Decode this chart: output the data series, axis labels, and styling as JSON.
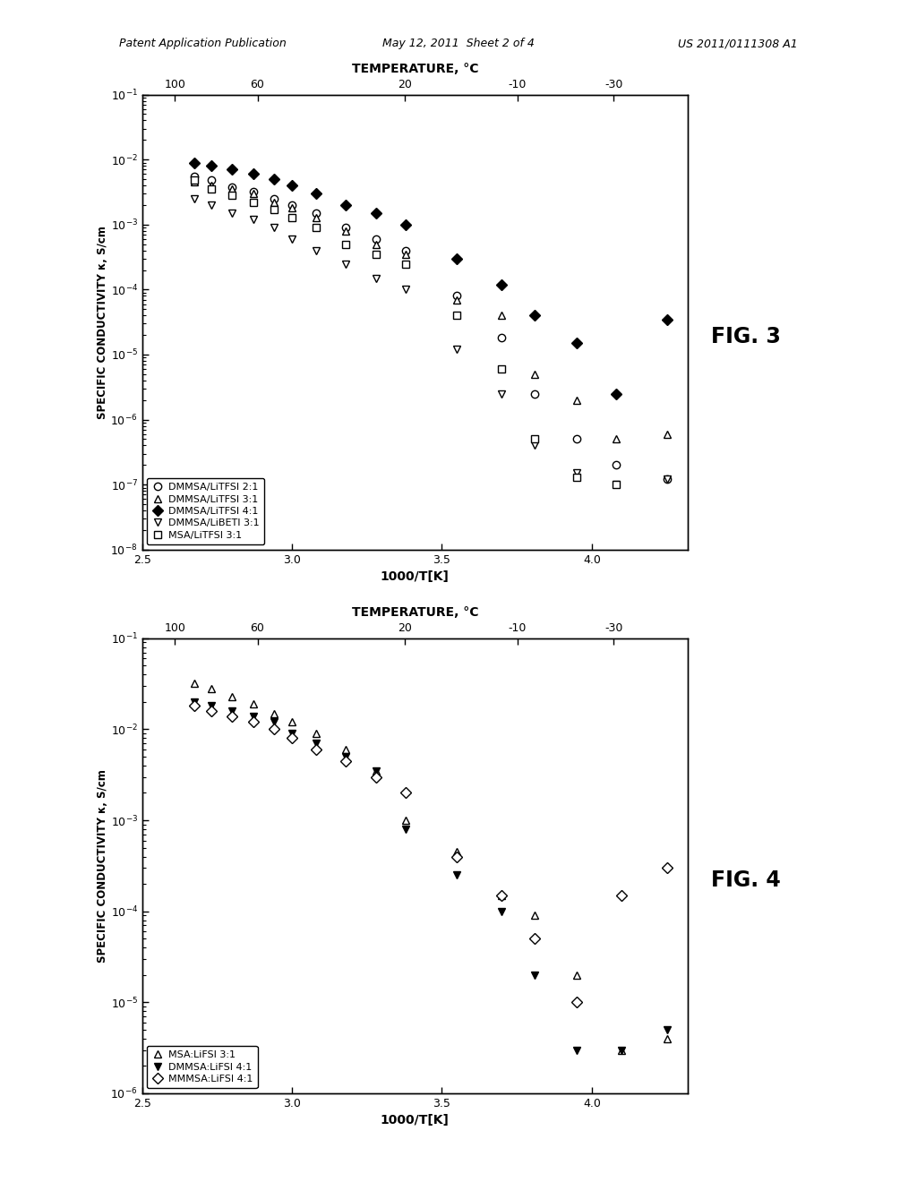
{
  "header_left": "Patent Application Publication",
  "header_mid": "May 12, 2011  Sheet 2 of 4",
  "header_right": "US 2011/0111308 A1",
  "fig3": {
    "title": "FIG. 3",
    "top_xlabel": "TEMPERATURE, °C",
    "top_xticks": [
      100,
      60,
      20,
      -10,
      -30
    ],
    "top_xtick_pos": [
      2.675,
      2.94,
      3.413,
      3.774,
      4.082
    ],
    "bottom_xlabel": "1000/T[K]",
    "ylabel": "SPECIFIC CONDUCTIVITY κ, S/cm",
    "xlim": [
      2.57,
      4.32
    ],
    "ylim_log": [
      -8,
      -1
    ],
    "series": [
      {
        "label": "DMMSA/LiTFSI 2:1",
        "marker": "o",
        "filled": false,
        "x": [
          2.675,
          2.73,
          2.8,
          2.87,
          2.94,
          3.0,
          3.08,
          3.18,
          3.28,
          3.38,
          3.55,
          3.7,
          3.81,
          3.95,
          4.08,
          4.25
        ],
        "y": [
          0.0055,
          0.0048,
          0.0038,
          0.0032,
          0.0025,
          0.002,
          0.0015,
          0.0009,
          0.0006,
          0.0004,
          8e-05,
          1.8e-05,
          2.5e-06,
          5e-07,
          2e-07,
          1.2e-07
        ]
      },
      {
        "label": "DMMSA/LiTFSI 3:1",
        "marker": "^",
        "filled": false,
        "x": [
          2.675,
          2.73,
          2.8,
          2.87,
          2.94,
          3.0,
          3.08,
          3.18,
          3.28,
          3.38,
          3.55,
          3.7,
          3.81,
          3.95,
          4.08,
          4.25
        ],
        "y": [
          0.0045,
          0.004,
          0.0035,
          0.003,
          0.0022,
          0.0018,
          0.0013,
          0.0008,
          0.0005,
          0.00035,
          7e-05,
          4e-05,
          5e-06,
          2e-06,
          5e-07,
          6e-07
        ]
      },
      {
        "label": "DMMSA/LiTFSI 4:1",
        "marker": "D",
        "filled": true,
        "x": [
          2.675,
          2.73,
          2.8,
          2.87,
          2.94,
          3.0,
          3.08,
          3.18,
          3.28,
          3.38,
          3.55,
          3.7,
          3.81,
          3.95,
          4.08,
          4.25
        ],
        "y": [
          0.009,
          0.008,
          0.007,
          0.006,
          0.005,
          0.004,
          0.003,
          0.002,
          0.0015,
          0.001,
          0.0003,
          0.00012,
          4e-05,
          1.5e-05,
          2.5e-06,
          3.5e-05
        ]
      },
      {
        "label": "DMMSA/LiBETI 3:1",
        "marker": "v",
        "filled": false,
        "x": [
          2.675,
          2.73,
          2.8,
          2.87,
          2.94,
          3.0,
          3.08,
          3.18,
          3.28,
          3.38,
          3.55,
          3.7,
          3.81,
          3.95,
          4.08,
          4.25
        ],
        "y": [
          0.0025,
          0.002,
          0.0015,
          0.0012,
          0.0009,
          0.0006,
          0.0004,
          0.00025,
          0.00015,
          0.0001,
          1.2e-05,
          2.5e-06,
          4e-07,
          1.5e-07,
          1e-07,
          1.2e-07
        ]
      },
      {
        "label": "MSA/LiTFSI 3:1",
        "marker": "s",
        "filled": false,
        "x": [
          2.675,
          2.73,
          2.8,
          2.87,
          2.94,
          3.0,
          3.08,
          3.18,
          3.28,
          3.38,
          3.55,
          3.7,
          3.81,
          3.95,
          4.08
        ],
        "y": [
          0.0048,
          0.0035,
          0.0028,
          0.0022,
          0.0017,
          0.0013,
          0.0009,
          0.0005,
          0.00035,
          0.00025,
          4e-05,
          6e-06,
          5e-07,
          1.3e-07,
          1e-07
        ]
      }
    ]
  },
  "fig4": {
    "title": "FIG. 4",
    "top_xlabel": "TEMPERATURE, °C",
    "top_xticks": [
      100,
      60,
      20,
      -10,
      -30
    ],
    "top_xtick_pos": [
      2.675,
      2.94,
      3.413,
      3.774,
      4.082
    ],
    "bottom_xlabel": "1000/T[K]",
    "ylabel": "SPECIFIC CONDUCTIVITY κ, S/cm",
    "xlim": [
      2.57,
      4.32
    ],
    "ylim_log": [
      -6,
      -1
    ],
    "series": [
      {
        "label": "MSA:LiFSI 3:1",
        "marker": "^",
        "filled": false,
        "x": [
          2.675,
          2.73,
          2.8,
          2.87,
          2.94,
          3.0,
          3.08,
          3.18,
          3.28,
          3.38,
          3.55,
          3.7,
          3.81,
          3.95,
          4.1,
          4.25
        ],
        "y": [
          0.032,
          0.028,
          0.023,
          0.019,
          0.015,
          0.012,
          0.009,
          0.006,
          0.0035,
          0.001,
          0.00045,
          0.00015,
          9e-05,
          2e-05,
          3e-06,
          4e-06
        ]
      },
      {
        "label": "DMMSA:LiFSI 4:1",
        "marker": "v",
        "filled": true,
        "x": [
          2.675,
          2.73,
          2.8,
          2.87,
          2.94,
          3.0,
          3.08,
          3.18,
          3.28,
          3.38,
          3.55,
          3.7,
          3.81,
          3.95,
          4.1,
          4.25
        ],
        "y": [
          0.02,
          0.018,
          0.016,
          0.014,
          0.012,
          0.009,
          0.007,
          0.005,
          0.0035,
          0.0008,
          0.00025,
          0.0001,
          2e-05,
          3e-06,
          3e-06,
          5e-06
        ]
      },
      {
        "label": "MMMSA:LiFSI 4:1",
        "marker": "D",
        "filled": false,
        "x": [
          2.675,
          2.73,
          2.8,
          2.87,
          2.94,
          3.0,
          3.08,
          3.18,
          3.28,
          3.38,
          3.55,
          3.7,
          3.81,
          3.95,
          4.1,
          4.25
        ],
        "y": [
          0.018,
          0.016,
          0.014,
          0.012,
          0.01,
          0.008,
          0.006,
          0.0045,
          0.003,
          0.002,
          0.0004,
          0.00015,
          5e-05,
          1e-05,
          0.00015,
          0.0003
        ]
      }
    ]
  },
  "bg_color": "#ffffff",
  "text_color": "#000000"
}
